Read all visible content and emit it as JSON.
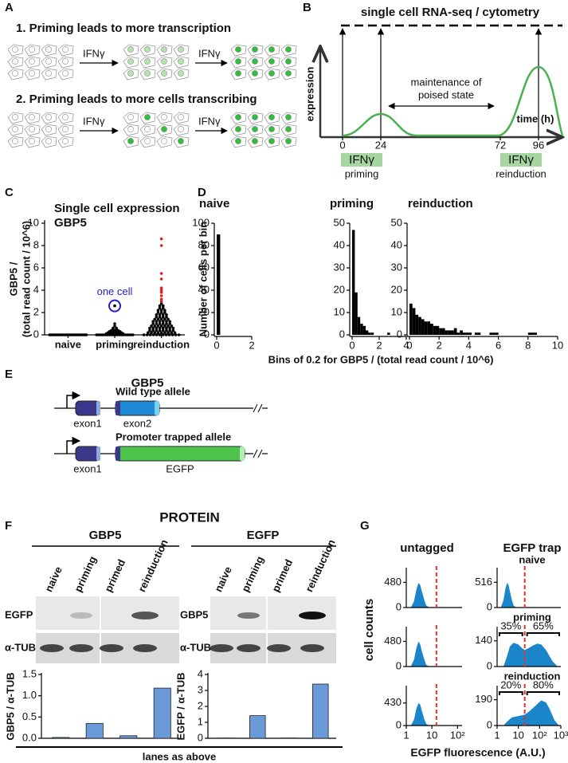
{
  "panel_labels": [
    "A",
    "B",
    "C",
    "D",
    "E",
    "F",
    "G"
  ],
  "panel_a": {
    "rows": [
      {
        "title": "1. Priming leads to more transcription",
        "stimuli": [
          "IFNγ",
          "IFNγ"
        ]
      },
      {
        "title": "2. Priming leads to more cells transcribing",
        "stimuli": [
          "IFNγ",
          "IFNγ"
        ]
      }
    ]
  },
  "panel_b": {
    "title": "single cell RNA-seq / cytometry",
    "y_label": "expression",
    "x_label": "time (h)",
    "annotation": [
      "maintenance of",
      "poised state"
    ],
    "time_ticks": [
      0,
      24,
      72,
      96
    ],
    "treatments": [
      {
        "label": "IFNγ",
        "caption": "priming"
      },
      {
        "label": "IFNγ",
        "caption": "reinduction"
      }
    ]
  },
  "panel_d": {
    "y_label": "Number of cells per bin",
    "x_label": "Bins of 0.2 for GBP5 / (total read count / 10^6)"
  },
  "panel_e": {
    "title": "GBP5",
    "alleles": [
      {
        "name": "Wild type allele",
        "exons": [
          "exon1",
          "exon2"
        ]
      },
      {
        "name": "Promoter trapped allele",
        "exons": [
          "exon1",
          "EGFP"
        ]
      }
    ]
  },
  "panel_f": {
    "title": "PROTEIN",
    "blots": [
      {
        "title": "GBP5",
        "lanes": [
          "naive",
          "priming",
          "primed",
          "reinduction"
        ],
        "rows": [
          "EGFP",
          "α-TUB"
        ]
      },
      {
        "title": "EGFP",
        "lanes": [
          "naive",
          "priming",
          "primed",
          "reinduction"
        ],
        "rows": [
          "GBP5",
          "α-TUB"
        ]
      }
    ],
    "footer": "lanes as above"
  },
  "panel_g": {
    "columns": [
      "untagged",
      "EGFP trap"
    ],
    "rows": [
      "naive",
      "priming",
      "reinduction"
    ],
    "y_label": "cell counts",
    "x_label": "EGFP fluorescence (A.U.)"
  },
  "chart_data": [
    {
      "type": "strip",
      "title": [
        "Single cell expression",
        "GBP5"
      ],
      "y_label": [
        "GBP5 /",
        "(total read count / 10^6)"
      ],
      "categories": [
        "naive",
        "priming",
        "reinduction"
      ],
      "series": [
        {
          "category": 0,
          "color": "#000000",
          "values": [
            0,
            0,
            0,
            0,
            0,
            0,
            0,
            0,
            0,
            0,
            0,
            0,
            0,
            0,
            0,
            0,
            0,
            0,
            0,
            0,
            0,
            0,
            0,
            0,
            0
          ]
        },
        {
          "category": 1,
          "color": "#000000",
          "values": [
            0,
            0,
            0,
            0,
            0,
            0,
            0,
            0,
            0,
            0,
            0,
            0,
            0,
            0,
            0,
            0,
            0,
            0,
            0,
            0,
            0.1,
            0.1,
            0.1,
            0.1,
            0.1,
            0.1,
            0.2,
            0.2,
            0.2,
            0.2,
            0.2,
            0.3,
            0.3,
            0.3,
            0.3,
            0.4,
            0.4,
            0.4,
            0.5,
            0.5,
            0.6,
            0.6,
            0.8,
            1.0,
            2.6
          ]
        },
        {
          "category": 2,
          "color": "#000000",
          "values": [
            0,
            0,
            0,
            0,
            0,
            0,
            0,
            0,
            0,
            0,
            0,
            0,
            0.2,
            0.2,
            0.2,
            0.2,
            0.2,
            0.2,
            0.2,
            0.2,
            0.2,
            0.4,
            0.4,
            0.4,
            0.4,
            0.4,
            0.4,
            0.4,
            0.4,
            0.6,
            0.6,
            0.6,
            0.6,
            0.6,
            0.6,
            0.6,
            0.6,
            0.8,
            0.8,
            0.8,
            0.8,
            0.8,
            0.8,
            0.8,
            1.0,
            1.0,
            1.0,
            1.0,
            1.0,
            1.0,
            1.2,
            1.2,
            1.2,
            1.2,
            1.2,
            1.2,
            1.4,
            1.4,
            1.4,
            1.4,
            1.4,
            1.6,
            1.6,
            1.6,
            1.6,
            1.8,
            1.8,
            1.8,
            1.8,
            2.0,
            2.0,
            2.0,
            2.2,
            2.2,
            2.2,
            2.4,
            2.4,
            2.6,
            2.6,
            2.8
          ]
        },
        {
          "category": 2,
          "color": "#e02020",
          "values": [
            3.0,
            3.2,
            3.5,
            3.8,
            4.0,
            4.2,
            5.0,
            5.5,
            8.0,
            8.6
          ]
        }
      ],
      "ylim": [
        0,
        10
      ],
      "yticks": [
        0,
        2,
        4,
        6,
        8,
        10
      ],
      "annotation": {
        "text": "one cell",
        "category": 1,
        "value": 2.6,
        "color": "#2020d0"
      }
    },
    {
      "type": "histogram",
      "title": "naive",
      "bins": [
        0,
        0.2
      ],
      "counts": [
        90
      ],
      "color": "#000000",
      "xlim": [
        0,
        2
      ],
      "xticks": [
        0,
        2
      ],
      "ylim": [
        0,
        100
      ],
      "yticks": [
        0,
        20,
        40,
        60,
        80,
        100
      ]
    },
    {
      "type": "histogram",
      "title": "priming",
      "bins": [
        0,
        0.2,
        0.4,
        0.6,
        0.8,
        1,
        1.2,
        1.4,
        1.6,
        1.8,
        2,
        2.2,
        2.4,
        2.6,
        2.8
      ],
      "counts": [
        47,
        19,
        8,
        5,
        4,
        2,
        1,
        1,
        0,
        0,
        0,
        0,
        0,
        1
      ],
      "color": "#000000",
      "xlim": [
        0,
        4
      ],
      "xticks": [
        0,
        2,
        4
      ],
      "ylim": [
        0,
        50
      ],
      "yticks": [
        0,
        10,
        20,
        30,
        40,
        50
      ]
    },
    {
      "type": "histogram",
      "title": "reinduction",
      "bins": [
        0,
        0.2,
        0.4,
        0.6,
        0.8,
        1,
        1.2,
        1.4,
        1.6,
        1.8,
        2,
        2.2,
        2.4,
        2.6,
        2.8,
        3,
        3.2,
        3.4,
        3.6,
        3.8,
        4,
        4.2,
        4.4,
        4.6,
        4.8,
        5,
        5.2,
        5.4,
        5.6,
        5.8,
        6,
        6.2,
        6.4,
        6.6,
        6.8,
        7,
        7.2,
        7.4,
        7.6,
        7.8,
        8,
        8.2,
        8.4,
        8.6
      ],
      "counts": [
        14,
        12,
        9,
        8,
        7,
        6,
        6,
        5,
        4,
        4,
        3,
        3,
        2,
        2,
        2,
        3,
        1,
        2,
        1,
        1,
        1,
        0,
        1,
        1,
        0,
        0,
        0,
        1,
        1,
        1,
        0,
        0,
        0,
        0,
        0,
        0,
        0,
        0,
        0,
        0,
        1,
        1,
        1
      ],
      "color": "#000000",
      "xlim": [
        0,
        10
      ],
      "xticks": [
        0,
        2,
        4,
        6,
        8,
        10
      ],
      "ylim": [
        0,
        50
      ],
      "yticks": [
        0,
        10,
        20,
        30,
        40,
        50
      ]
    },
    {
      "type": "bar",
      "y_label": "GBP5 / α-TUB",
      "values": [
        0.02,
        0.35,
        0.06,
        1.18
      ],
      "color": "#6a9bd8",
      "ylim": [
        0,
        1.5
      ],
      "yticks": [
        {
          "value": 0,
          "label": "0.0"
        },
        {
          "value": 0.5,
          "label": "0.5"
        },
        {
          "value": 1,
          "label": "1.0"
        },
        {
          "value": 1.5,
          "label": "1.5"
        }
      ]
    },
    {
      "type": "bar",
      "y_label": "EGFP / α-TUB",
      "values": [
        0.02,
        1.42,
        0.02,
        3.4
      ],
      "color": "#6a9bd8",
      "ylim": [
        0,
        4
      ],
      "yticks": [
        0,
        1,
        2,
        3,
        4
      ]
    },
    {
      "type": "area",
      "log_x": true,
      "color": "#1a86c9",
      "x": [
        1.5,
        2,
        2.5,
        3,
        3.5,
        4,
        5,
        6,
        8
      ],
      "values": [
        0,
        120,
        350,
        470,
        430,
        320,
        150,
        40,
        0
      ],
      "xlim": [
        1,
        150
      ],
      "ylim": [
        0,
        700
      ],
      "yticks": [
        0,
        480
      ],
      "threshold": 15
    },
    {
      "type": "area",
      "log_x": true,
      "color": "#1a86c9",
      "x": [
        1.5,
        2,
        2.5,
        3,
        3.5,
        4,
        5,
        6,
        8
      ],
      "values": [
        0,
        150,
        400,
        510,
        450,
        330,
        150,
        40,
        0
      ],
      "xlim": [
        1,
        1000
      ],
      "ylim": [
        0,
        750
      ],
      "yticks": [
        0,
        516
      ],
      "threshold": 20
    },
    {
      "type": "area",
      "log_x": true,
      "color": "#1a86c9",
      "x": [
        1.5,
        2,
        2.5,
        3,
        3.5,
        4,
        5,
        6,
        8
      ],
      "values": [
        0,
        130,
        360,
        480,
        420,
        300,
        140,
        30,
        0
      ],
      "xlim": [
        1,
        150
      ],
      "ylim": [
        0,
        700
      ],
      "yticks": [
        0,
        480
      ],
      "threshold": 15
    },
    {
      "type": "area",
      "log_x": true,
      "color": "#1a86c9",
      "x": [
        2,
        3,
        4,
        6,
        10,
        15,
        20,
        30,
        50,
        80,
        120,
        200,
        400,
        700
      ],
      "values": [
        0,
        60,
        110,
        130,
        120,
        100,
        90,
        100,
        115,
        125,
        120,
        90,
        30,
        0
      ],
      "xlim": [
        1,
        1000
      ],
      "ylim": [
        0,
        200
      ],
      "yticks": [
        0,
        140
      ],
      "threshold": 20,
      "percent_values": [
        35,
        65
      ],
      "percent_labels": [
        "35%",
        "65%"
      ]
    },
    {
      "type": "area",
      "log_x": true,
      "color": "#1a86c9",
      "x": [
        1.5,
        2,
        2.5,
        3,
        3.5,
        4,
        5,
        6,
        8
      ],
      "values": [
        0,
        110,
        330,
        430,
        400,
        290,
        130,
        30,
        0
      ],
      "xlim": [
        1,
        150
      ],
      "xticks": [
        1,
        10,
        {
          "value": 100,
          "label": "10²"
        }
      ],
      "ylim": [
        0,
        700
      ],
      "yticks": [
        0,
        430
      ],
      "threshold": 15
    },
    {
      "type": "area",
      "log_x": true,
      "color": "#1a86c9",
      "x": [
        2,
        3,
        5,
        10,
        20,
        30,
        50,
        80,
        120,
        200,
        300,
        500,
        800
      ],
      "values": [
        0,
        30,
        60,
        70,
        80,
        100,
        130,
        160,
        185,
        170,
        120,
        40,
        0
      ],
      "xlim": [
        1,
        1000
      ],
      "xticks": [
        1,
        10,
        {
          "value": 100,
          "label": "10²"
        },
        {
          "value": 1000,
          "label": "10³"
        }
      ],
      "ylim": [
        0,
        270
      ],
      "yticks": [
        0,
        190
      ],
      "threshold": 20,
      "percent_values": [
        20,
        80
      ],
      "percent_labels": [
        "20%",
        "80%"
      ]
    }
  ]
}
